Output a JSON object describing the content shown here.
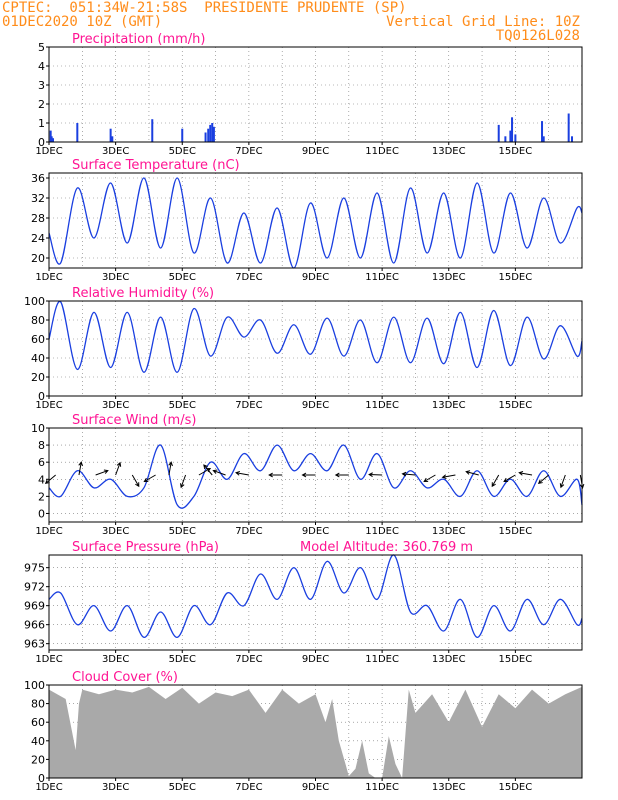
{
  "header": {
    "line1": "CPTEC:  051:34W-21:58S  PRESIDENTE PRUDENTE (SP)",
    "line2_left": "01DEC2020 10Z (GMT)",
    "line2_right": "Vertical Grid Line: 10Z",
    "line3_right": "TQ0126L028"
  },
  "colors": {
    "header": "#ff8c1a",
    "title": "#ff1493",
    "line": "#1a3fe0",
    "bar": "#1a3fe0",
    "cloud": "#a9a9a9",
    "arrow": "#000000"
  },
  "x_ticks": [
    "1DEC",
    "3DEC",
    "5DEC",
    "7DEC",
    "9DEC",
    "11DEC",
    "13DEC",
    "15DEC"
  ],
  "chart_data": [
    {
      "type": "bar",
      "title": "Precipitation (mm/h)",
      "ylim": [
        0,
        5
      ],
      "yticks": [
        0,
        1,
        2,
        3,
        4,
        5
      ],
      "bars": [
        [
          0.05,
          0.6
        ],
        [
          0.08,
          0.3
        ],
        [
          0.12,
          0.2
        ],
        [
          0.85,
          1.0
        ],
        [
          1.85,
          0.7
        ],
        [
          1.9,
          0.3
        ],
        [
          3.1,
          1.2
        ],
        [
          4.0,
          0.7
        ],
        [
          4.7,
          0.5
        ],
        [
          4.78,
          0.7
        ],
        [
          4.84,
          0.9
        ],
        [
          4.9,
          1.0
        ],
        [
          4.95,
          0.8
        ],
        [
          13.5,
          0.9
        ],
        [
          13.7,
          0.3
        ],
        [
          13.85,
          0.6
        ],
        [
          13.9,
          1.3
        ],
        [
          14.0,
          0.4
        ],
        [
          14.8,
          1.1
        ],
        [
          14.85,
          0.3
        ],
        [
          15.6,
          1.5
        ],
        [
          15.7,
          0.3
        ]
      ]
    },
    {
      "type": "line",
      "title": "Surface Temperature (nC)",
      "ylim": [
        18,
        37
      ],
      "yticks": [
        20,
        24,
        28,
        32,
        36
      ],
      "x": [
        0,
        0.35,
        0.85,
        1.35,
        1.85,
        2.35,
        2.85,
        3.35,
        3.85,
        4.35,
        4.85,
        5.35,
        5.85,
        6.35,
        6.85,
        7.35,
        7.85,
        8.35,
        8.85,
        9.35,
        9.85,
        10.35,
        10.85,
        11.35,
        11.85,
        12.35,
        12.85,
        13.35,
        13.85,
        14.35,
        14.85,
        15.35,
        15.85,
        16.0
      ],
      "y": [
        25,
        19,
        34,
        24,
        35,
        23,
        36,
        22,
        36,
        21,
        32,
        19,
        29,
        19,
        30,
        18,
        31,
        20,
        32,
        20,
        33,
        19,
        34,
        21,
        33,
        20,
        35,
        21,
        33,
        22,
        32,
        23,
        30,
        29
      ]
    },
    {
      "type": "line",
      "title": "Relative Humidity (%)",
      "ylim": [
        0,
        100
      ],
      "yticks": [
        0,
        20,
        40,
        60,
        80,
        100
      ],
      "x": [
        0,
        0.35,
        0.85,
        1.35,
        1.85,
        2.35,
        2.85,
        3.35,
        3.85,
        4.35,
        4.85,
        5.35,
        5.85,
        6.35,
        6.85,
        7.35,
        7.85,
        8.35,
        8.85,
        9.35,
        9.85,
        10.35,
        10.85,
        11.35,
        11.85,
        12.35,
        12.85,
        13.35,
        13.85,
        14.35,
        14.85,
        15.35,
        15.85,
        16.0
      ],
      "y": [
        60,
        99,
        28,
        88,
        30,
        88,
        25,
        83,
        25,
        92,
        42,
        83,
        62,
        80,
        45,
        75,
        44,
        82,
        42,
        80,
        35,
        83,
        35,
        82,
        34,
        88,
        30,
        90,
        32,
        83,
        39,
        74,
        42,
        58
      ]
    },
    {
      "type": "line",
      "title": "Surface Wind (m/s)",
      "ylim": [
        -1,
        10
      ],
      "yticks": [
        0,
        2,
        4,
        6,
        8,
        10
      ],
      "x": [
        0,
        0.35,
        0.85,
        1.35,
        1.85,
        2.35,
        2.85,
        3.35,
        3.85,
        4.35,
        4.85,
        5.35,
        5.85,
        6.35,
        6.85,
        7.35,
        7.85,
        8.35,
        8.85,
        9.35,
        9.85,
        10.35,
        10.85,
        11.35,
        11.85,
        12.35,
        12.85,
        13.35,
        13.85,
        14.35,
        14.85,
        15.35,
        15.85,
        16.0
      ],
      "y": [
        3,
        2,
        5,
        3,
        4,
        2,
        3,
        8,
        1,
        2,
        6,
        4,
        7,
        5,
        8,
        5,
        7,
        5,
        8,
        4,
        7,
        3,
        5,
        3,
        4,
        2,
        5,
        2,
        4,
        2,
        5,
        2,
        4,
        1
      ],
      "arrows": [
        [
          0.2,
          -140
        ],
        [
          0.9,
          80
        ],
        [
          1.4,
          20
        ],
        [
          2.0,
          70
        ],
        [
          2.5,
          -60
        ],
        [
          3.2,
          -150
        ],
        [
          3.6,
          80
        ],
        [
          4.1,
          -110
        ],
        [
          4.5,
          30
        ],
        [
          4.9,
          130
        ],
        [
          5.3,
          160
        ],
        [
          6.0,
          170
        ],
        [
          7.0,
          180
        ],
        [
          8.0,
          180
        ],
        [
          9.0,
          180
        ],
        [
          10.0,
          178
        ],
        [
          11.0,
          175
        ],
        [
          11.6,
          -150
        ],
        [
          12.2,
          -170
        ],
        [
          12.9,
          165
        ],
        [
          13.5,
          -120
        ],
        [
          14.0,
          -150
        ],
        [
          14.5,
          170
        ],
        [
          15.0,
          -140
        ],
        [
          15.5,
          -110
        ],
        [
          15.95,
          -80
        ]
      ]
    },
    {
      "type": "line",
      "title": "Surface Pressure (hPa)",
      "annotation": "Model Altitude: 360.769  m",
      "ylim": [
        962,
        977
      ],
      "yticks": [
        963,
        966,
        969,
        972,
        975
      ],
      "x": [
        0,
        0.35,
        0.85,
        1.35,
        1.85,
        2.35,
        2.85,
        3.35,
        3.85,
        4.35,
        4.85,
        5.35,
        5.85,
        6.35,
        6.85,
        7.35,
        7.85,
        8.35,
        8.85,
        9.35,
        9.85,
        10.35,
        10.85,
        11.35,
        11.85,
        12.35,
        12.85,
        13.35,
        13.85,
        14.35,
        14.85,
        15.35,
        15.85,
        16.0
      ],
      "y": [
        970,
        971,
        966,
        969,
        965,
        969,
        964,
        968,
        964,
        969,
        966,
        971,
        969,
        974,
        970,
        975,
        970,
        976,
        971,
        975,
        970,
        977,
        968,
        969,
        965,
        970,
        964,
        969,
        965,
        970,
        966,
        970,
        966,
        967
      ]
    },
    {
      "type": "area",
      "title": "Cloud Cover (%)",
      "ylim": [
        0,
        100
      ],
      "yticks": [
        0,
        20,
        40,
        60,
        80,
        100
      ],
      "x": [
        0,
        0.5,
        0.8,
        0.9,
        1.0,
        1.5,
        2.0,
        2.5,
        3.0,
        3.5,
        4.0,
        4.5,
        5.0,
        5.5,
        6.0,
        6.5,
        7.0,
        7.5,
        8.0,
        8.3,
        8.5,
        8.7,
        8.9,
        9.0,
        9.2,
        9.4,
        9.6,
        9.8,
        10.0,
        10.2,
        10.4,
        10.6,
        10.8,
        11.0,
        11.5,
        12.0,
        12.5,
        13.0,
        13.5,
        14.0,
        14.5,
        15.0,
        15.5,
        16.0
      ],
      "y": [
        95,
        85,
        30,
        80,
        95,
        90,
        95,
        92,
        98,
        85,
        97,
        80,
        92,
        88,
        95,
        70,
        95,
        80,
        90,
        60,
        85,
        40,
        15,
        2,
        10,
        40,
        5,
        0,
        0,
        45,
        15,
        0,
        95,
        70,
        90,
        60,
        95,
        55,
        90,
        75,
        95,
        80,
        90,
        98
      ]
    }
  ]
}
